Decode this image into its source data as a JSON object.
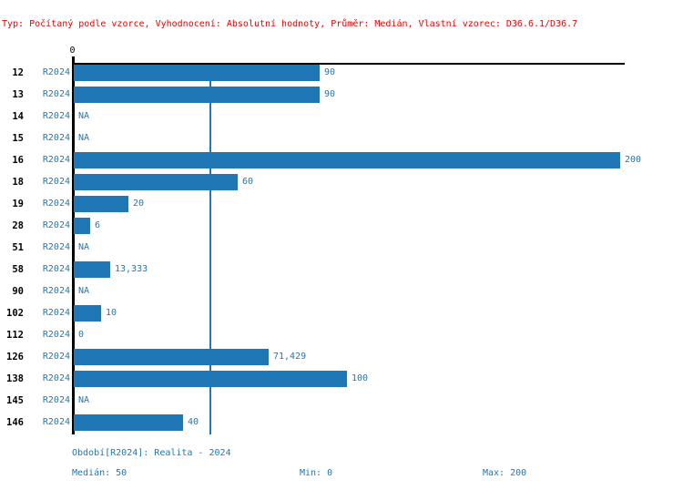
{
  "title": "Typ: Počítaný podle vzorce, Vyhodnocení: Absolutní hodnoty, Průměr: Medián, Vlastní vzorec: D36.6.1/D36.7",
  "colors": {
    "bar": "#2077b5",
    "text_blue": "#1f77b4",
    "title_red": "#ee0000",
    "axis_black": "#000000"
  },
  "chart_data": {
    "type": "bar",
    "orientation": "horizontal",
    "title": "",
    "xlabel": "",
    "ylabel": "",
    "xlim": [
      0,
      200
    ],
    "axis_zero_label": "0",
    "grid": false,
    "median_value": 50,
    "period_label": "R2024",
    "categories": [
      "12",
      "13",
      "14",
      "15",
      "16",
      "18",
      "19",
      "28",
      "51",
      "58",
      "90",
      "102",
      "112",
      "126",
      "138",
      "145",
      "146"
    ],
    "values": [
      90,
      90,
      null,
      null,
      200,
      60,
      20,
      6,
      null,
      13.333,
      null,
      10,
      0,
      71.429,
      100,
      null,
      40
    ],
    "value_labels": [
      "90",
      "90",
      "NA",
      "NA",
      "200",
      "60",
      "20",
      "6",
      "NA",
      "13,333",
      "NA",
      "10",
      "0",
      "71,429",
      "100",
      "NA",
      "40"
    ]
  },
  "footer": {
    "period_line": "Období[R2024]: Realita - 2024",
    "median": "Medián: 50",
    "min": "Min: 0",
    "max": "Max: 200"
  }
}
